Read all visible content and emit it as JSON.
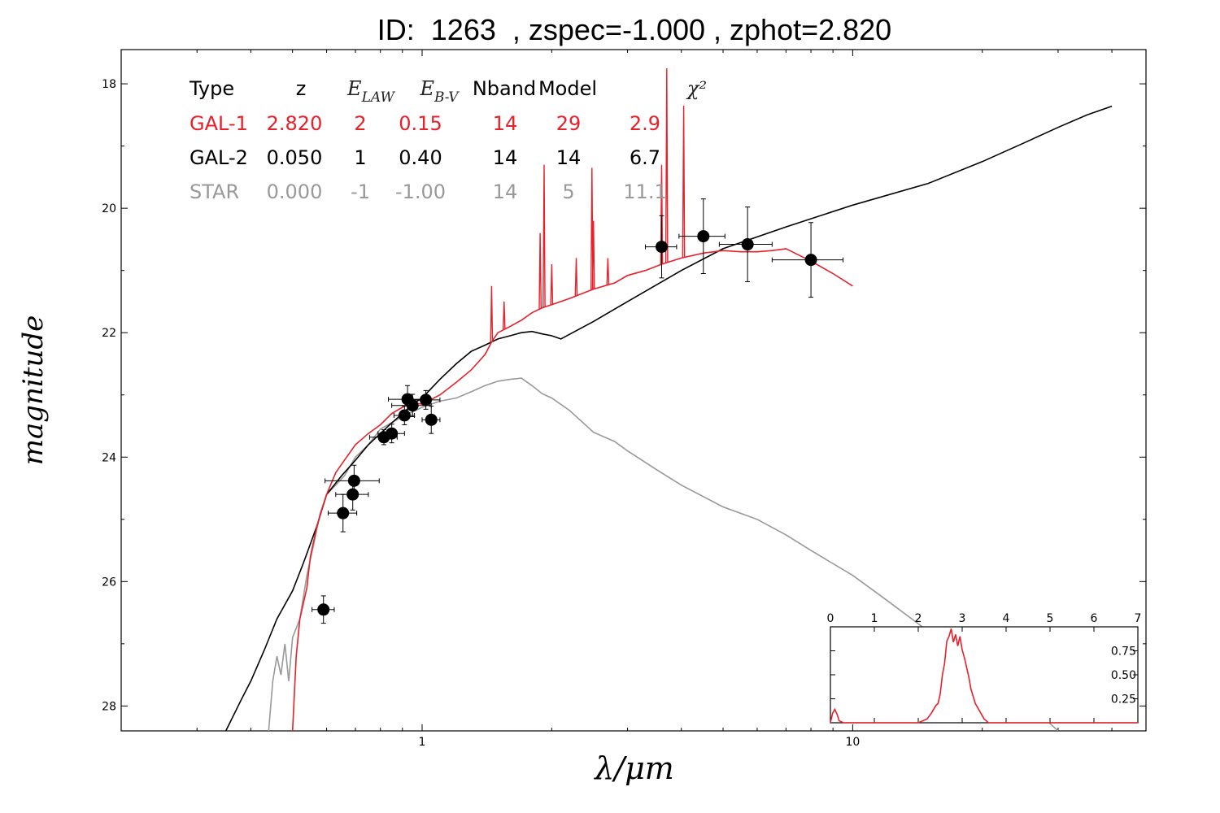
{
  "title": "ID:  1263  , zspec=-1.000 , zphot=2.820",
  "legend_table": {
    "headers": [
      "Type",
      "z",
      "E_LAW",
      "E_B-V",
      "Nband",
      "Model",
      "χ²"
    ],
    "rows": [
      {
        "type": "GAL-1",
        "z": "2.820",
        "elaw": "2",
        "ebv": "0.15",
        "nband": "14",
        "model": "29",
        "chi2": "2.9",
        "color": "#e8202a"
      },
      {
        "type": "GAL-2",
        "z": "0.050",
        "elaw": "1",
        "ebv": "0.40",
        "nband": "14",
        "model": "14",
        "chi2": "6.7",
        "color": "#000000"
      },
      {
        "type": "STAR",
        "z": "0.000",
        "elaw": "-1",
        "ebv": "-1.00",
        "nband": "14",
        "model": "5",
        "chi2": "11.1",
        "color": "#999999"
      }
    ]
  },
  "chart_data": [
    {
      "type": "line",
      "xlabel": "λ/μm",
      "ylabel": "magnitude",
      "xscale": "log",
      "xlim": [
        0.2,
        48
      ],
      "ylim": [
        28.4,
        17.45
      ],
      "yticks": [
        18,
        20,
        22,
        24,
        26,
        28
      ],
      "xticks": [
        1,
        10
      ],
      "grid": false,
      "series": [
        {
          "name": "GAL-1",
          "color": "#e8202a",
          "x": [
            0.5,
            0.51,
            0.52,
            0.54,
            0.55,
            0.57,
            0.6,
            0.63,
            0.66,
            0.7,
            0.75,
            0.8,
            0.85,
            0.9,
            0.95,
            1.0,
            1.1,
            1.2,
            1.3,
            1.4,
            1.45,
            1.5,
            1.6,
            1.7,
            1.8,
            1.9,
            2.0,
            2.2,
            2.5,
            2.8,
            3.0,
            3.3,
            3.6,
            4.0,
            4.5,
            5.0,
            5.5,
            6.0,
            6.5,
            7.0,
            8.0,
            9.0,
            10.0
          ],
          "y": [
            28.4,
            27.2,
            26.6,
            26.1,
            25.6,
            25.1,
            24.6,
            24.25,
            24.05,
            23.8,
            23.62,
            23.48,
            23.3,
            23.2,
            23.12,
            23.15,
            23.0,
            22.8,
            22.6,
            22.35,
            22.15,
            22.0,
            21.9,
            21.8,
            21.68,
            21.6,
            21.55,
            21.45,
            21.3,
            21.2,
            21.08,
            21.0,
            20.9,
            20.8,
            20.72,
            20.68,
            20.7,
            20.7,
            20.68,
            20.65,
            20.85,
            21.05,
            21.25
          ]
        },
        {
          "name": "GAL-2",
          "color": "#000000",
          "x": [
            0.35,
            0.38,
            0.4,
            0.43,
            0.46,
            0.5,
            0.53,
            0.57,
            0.6,
            0.65,
            0.7,
            0.75,
            0.8,
            0.85,
            0.9,
            0.95,
            1.0,
            1.1,
            1.2,
            1.3,
            1.4,
            1.5,
            1.6,
            1.7,
            1.8,
            1.9,
            2.0,
            2.1,
            2.5,
            3.0,
            4.0,
            5.0,
            7.0,
            10.0,
            15.0,
            20.0,
            25.0,
            30.0,
            35.0,
            40.0
          ],
          "y": [
            28.4,
            27.9,
            27.6,
            27.1,
            26.6,
            26.15,
            25.7,
            25.1,
            24.6,
            24.3,
            24.05,
            23.8,
            23.62,
            23.45,
            23.3,
            23.15,
            23.05,
            22.75,
            22.5,
            22.3,
            22.2,
            22.1,
            22.05,
            22.0,
            21.98,
            22.02,
            22.05,
            22.1,
            21.82,
            21.5,
            21.0,
            20.65,
            20.3,
            19.95,
            19.6,
            19.25,
            18.95,
            18.7,
            18.5,
            18.36
          ]
        },
        {
          "name": "STAR",
          "color": "#999999",
          "x": [
            0.44,
            0.45,
            0.46,
            0.47,
            0.48,
            0.49,
            0.5,
            0.52,
            0.54,
            0.56,
            0.58,
            0.6,
            0.63,
            0.66,
            0.7,
            0.75,
            0.8,
            0.9,
            1.0,
            1.1,
            1.2,
            1.3,
            1.4,
            1.5,
            1.6,
            1.7,
            1.8,
            1.9,
            2.0,
            2.2,
            2.5,
            2.8,
            3.0,
            3.5,
            4.0,
            5.0,
            6.0,
            7.0,
            8.0,
            10.0,
            12.0,
            15.0,
            20.0,
            25.0,
            30.0
          ],
          "y": [
            28.4,
            27.6,
            27.2,
            27.5,
            27.0,
            27.6,
            26.9,
            26.6,
            25.9,
            25.4,
            24.9,
            24.6,
            24.45,
            24.3,
            24.0,
            23.8,
            23.55,
            23.35,
            23.2,
            23.1,
            23.05,
            22.95,
            22.85,
            22.78,
            22.75,
            22.73,
            22.85,
            22.98,
            23.05,
            23.25,
            23.6,
            23.75,
            23.9,
            24.2,
            24.45,
            24.8,
            25.0,
            25.25,
            25.5,
            25.9,
            26.3,
            26.8,
            27.4,
            27.9,
            28.4
          ]
        }
      ],
      "emission_lines": [
        {
          "x": 1.45,
          "peak": 21.25
        },
        {
          "x": 1.55,
          "peak": 21.5
        },
        {
          "x": 1.88,
          "peak": 20.4
        },
        {
          "x": 1.92,
          "peak": 19.3
        },
        {
          "x": 2.0,
          "peak": 20.9
        },
        {
          "x": 2.28,
          "peak": 20.8
        },
        {
          "x": 2.48,
          "peak": 19.35
        },
        {
          "x": 2.5,
          "peak": 20.2
        },
        {
          "x": 2.7,
          "peak": 20.8
        },
        {
          "x": 3.6,
          "peak": 19.3
        },
        {
          "x": 3.7,
          "peak": 17.75
        },
        {
          "x": 4.05,
          "peak": 18.35
        }
      ],
      "observations": [
        {
          "x": 0.59,
          "y": 26.45,
          "xerr": 0.035,
          "yerr": 0.22
        },
        {
          "x": 0.655,
          "y": 24.9,
          "xerr": 0.05,
          "yerr": 0.3
        },
        {
          "x": 0.69,
          "y": 24.6,
          "xerr": 0.06,
          "yerr": 0.25
        },
        {
          "x": 0.695,
          "y": 24.38,
          "xerr": 0.1,
          "yerr": 0.25
        },
        {
          "x": 0.815,
          "y": 23.68,
          "xerr": 0.06,
          "yerr": 0.12
        },
        {
          "x": 0.85,
          "y": 23.62,
          "xerr": 0.06,
          "yerr": 0.15
        },
        {
          "x": 0.91,
          "y": 23.33,
          "xerr": 0.05,
          "yerr": 0.15
        },
        {
          "x": 0.925,
          "y": 23.07,
          "xerr": 0.09,
          "yerr": 0.22
        },
        {
          "x": 0.95,
          "y": 23.17,
          "xerr": 0.1,
          "yerr": 0.18
        },
        {
          "x": 1.02,
          "y": 23.08,
          "xerr": 0.08,
          "yerr": 0.15
        },
        {
          "x": 1.05,
          "y": 23.4,
          "xerr": 0.05,
          "yerr": 0.22
        },
        {
          "x": 3.6,
          "y": 20.62,
          "xerr": 0.3,
          "yerr": 0.5
        },
        {
          "x": 4.5,
          "y": 20.45,
          "xerr": 0.55,
          "yerr": 0.6
        },
        {
          "x": 5.7,
          "y": 20.58,
          "xerr": 0.8,
          "yerr": 0.6
        },
        {
          "x": 8.0,
          "y": 20.83,
          "xerr": 1.5,
          "yerr": 0.6
        }
      ]
    },
    {
      "type": "line",
      "xlim": [
        0,
        7
      ],
      "ylim": [
        0,
        1
      ],
      "xticks": [
        0,
        1,
        2,
        3,
        4,
        5,
        6,
        7
      ],
      "yticks": [
        0.25,
        0.5,
        0.75
      ],
      "ytick_labels": [
        "0.25",
        "0.50",
        "0.75"
      ],
      "series": [
        {
          "name": "",
          "color": "#e8202a",
          "x": [
            0.0,
            0.05,
            0.1,
            0.15,
            0.2,
            0.3,
            0.5,
            1.0,
            1.5,
            2.0,
            2.2,
            2.3,
            2.4,
            2.45,
            2.5,
            2.55,
            2.6,
            2.65,
            2.7,
            2.75,
            2.8,
            2.85,
            2.9,
            2.95,
            3.0,
            3.05,
            3.1,
            3.15,
            3.2,
            3.3,
            3.4,
            3.5,
            3.6,
            4.0,
            5.0,
            6.0,
            7.0
          ],
          "y": [
            0.0,
            0.1,
            0.14,
            0.09,
            0.02,
            0.0,
            0.0,
            0.0,
            0.0,
            0.0,
            0.04,
            0.1,
            0.18,
            0.2,
            0.3,
            0.5,
            0.62,
            0.85,
            0.9,
            0.98,
            0.84,
            0.92,
            0.8,
            0.9,
            0.76,
            0.68,
            0.58,
            0.48,
            0.35,
            0.2,
            0.12,
            0.04,
            0.0,
            0.0,
            0.0,
            0.0,
            0.0
          ]
        }
      ]
    }
  ]
}
